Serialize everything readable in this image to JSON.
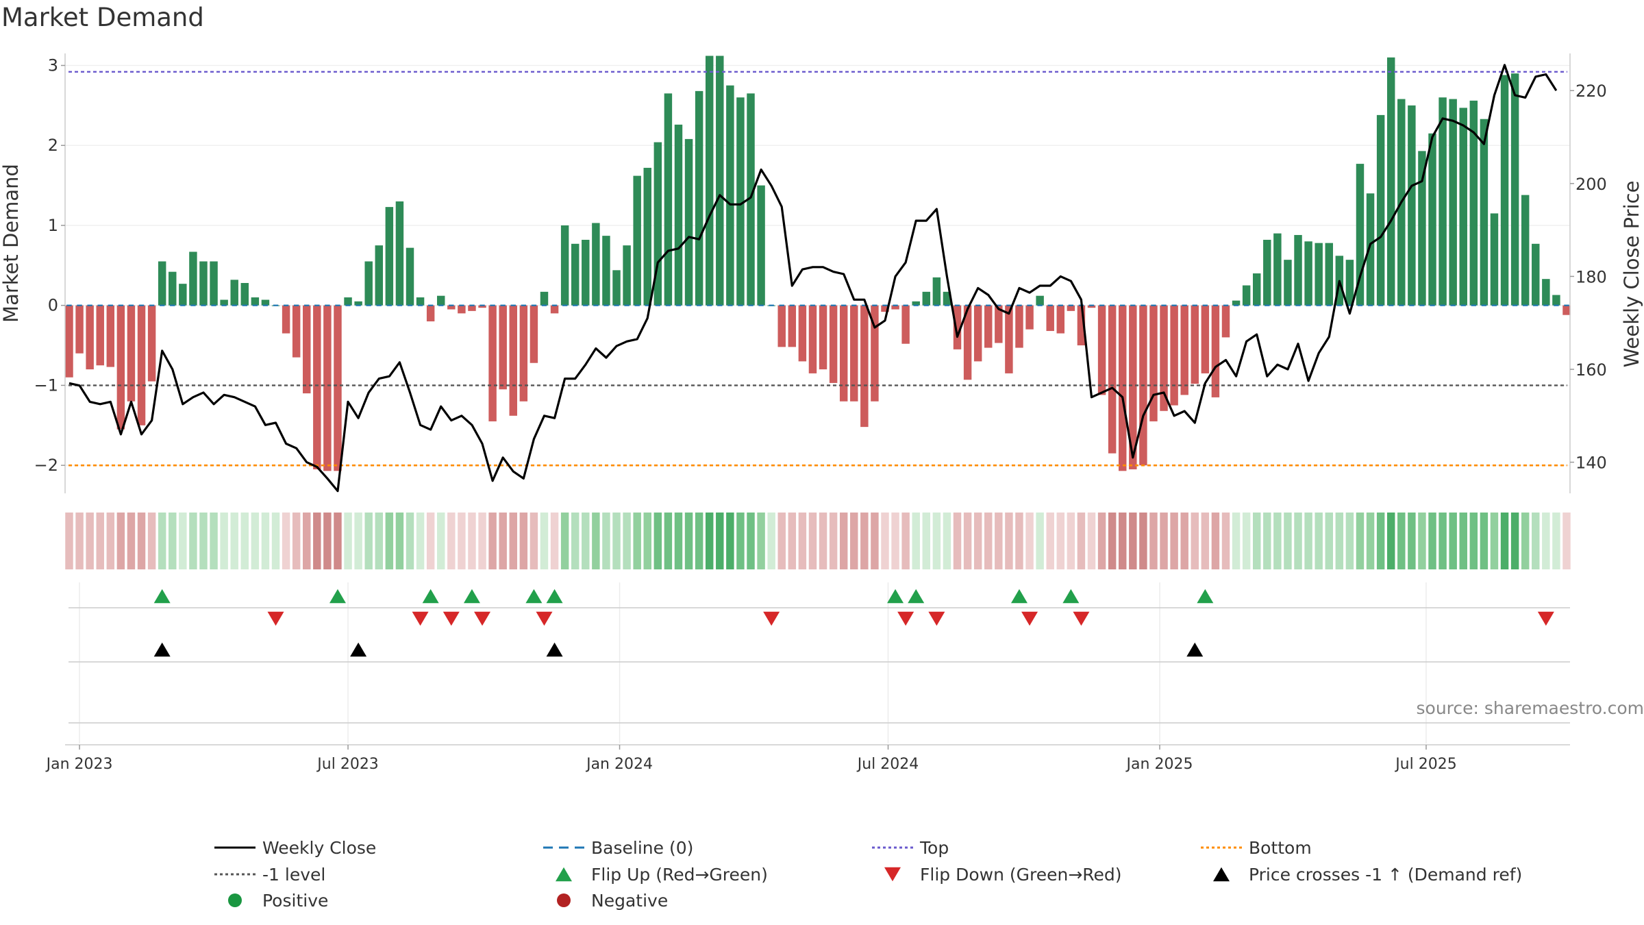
{
  "chart_data": {
    "type": "bar",
    "title": "Market Demand",
    "ylabel": "Market Demand",
    "y2label": "Weekly Close Price",
    "source": "source: sharemaestro.com",
    "ylim": [
      -2.35,
      3.15
    ],
    "y2lim": [
      133.3,
      228
    ],
    "yticks": [
      3,
      2,
      1,
      0,
      -1,
      -2
    ],
    "ytick_labels": [
      "3",
      "2",
      "1",
      "0",
      "−1",
      "−2"
    ],
    "y2ticks": [
      220,
      200,
      180,
      160,
      140
    ],
    "y2tick_labels": [
      "220",
      "200",
      "180",
      "160",
      "140"
    ],
    "reference_levels": {
      "top": 2.92,
      "minus1": -1,
      "bottom": -2
    },
    "x_start": "2022-12-26",
    "x_ticks": [
      {
        "label": "Jan 2023",
        "week": 1
      },
      {
        "label": "Jul 2023",
        "week": 27
      },
      {
        "label": "Jan 2024",
        "week": 53.3
      },
      {
        "label": "Jul 2024",
        "week": 79.3
      },
      {
        "label": "Jan 2025",
        "week": 105.6
      },
      {
        "label": "Jul 2025",
        "week": 131.4
      }
    ],
    "demand": [
      -0.9,
      -0.6,
      -0.8,
      -0.75,
      -0.77,
      -1.55,
      -1.2,
      -1.5,
      -0.95,
      0.55,
      0.42,
      0.27,
      0.67,
      0.55,
      0.55,
      0.07,
      0.32,
      0.28,
      0.1,
      0.07,
      0,
      -0.35,
      -0.65,
      -1.1,
      -2.05,
      -2.07,
      -2.07,
      0.1,
      0.05,
      0.55,
      0.75,
      1.23,
      1.3,
      0.72,
      0.1,
      -0.2,
      0.12,
      -0.05,
      -0.1,
      -0.07,
      -0.03,
      -1.45,
      -1.05,
      -1.38,
      -1.2,
      -0.72,
      0.17,
      -0.1,
      1,
      0.77,
      0.82,
      1.03,
      0.87,
      0.44,
      0.75,
      1.62,
      1.72,
      2.04,
      2.65,
      2.26,
      2.08,
      2.68,
      3.12,
      3.12,
      2.75,
      2.6,
      2.65,
      1.5,
      0,
      -0.52,
      -0.52,
      -0.7,
      -0.85,
      -0.8,
      -0.97,
      -1.2,
      -1.2,
      -1.52,
      -1.2,
      -0.08,
      -0.05,
      -0.48,
      0.05,
      0.17,
      0.35,
      0.17,
      -0.55,
      -0.93,
      -0.7,
      -0.53,
      -0.47,
      -0.85,
      -0.53,
      -0.3,
      0.12,
      -0.32,
      -0.35,
      -0.07,
      -0.5,
      -0.03,
      -1.12,
      -1.85,
      -2.07,
      -2.05,
      -2,
      -1.45,
      -1.32,
      -1.25,
      -1.12,
      -0.98,
      -0.85,
      -1.15,
      -0.4,
      0.06,
      0.25,
      0.4,
      0.82,
      0.9,
      0.57,
      0.88,
      0.8,
      0.78,
      0.78,
      0.62,
      0.57,
      1.77,
      1.4,
      2.38,
      3.1,
      2.58,
      2.5,
      1.93,
      2.15,
      2.6,
      2.58,
      2.47,
      2.56,
      2.33,
      1.15,
      2.88,
      2.9,
      1.38,
      0.77,
      0.33,
      0.13,
      -0.12
    ],
    "weekly_close": [
      157,
      156.5,
      153,
      152.5,
      153,
      146,
      153,
      146,
      149,
      164,
      160,
      152.5,
      154,
      155,
      152.5,
      154.5,
      154,
      153,
      152,
      148,
      148.5,
      144,
      143,
      140,
      139,
      136.5,
      133.8,
      153,
      149.5,
      155,
      158,
      158.5,
      161.5,
      155,
      148,
      147,
      152,
      149,
      150,
      148,
      144,
      136,
      141,
      138,
      136.5,
      145,
      150,
      149.5,
      158,
      158,
      161,
      164.5,
      162.5,
      165,
      166,
      166.5,
      171,
      183,
      185.5,
      186,
      188.5,
      188,
      193,
      197.5,
      195.5,
      195.5,
      197,
      203,
      199.5,
      195,
      178,
      181.5,
      182,
      182,
      181,
      180.5,
      175,
      175,
      169,
      170.5,
      180,
      183,
      192,
      192,
      194.5,
      180,
      167,
      173,
      177.5,
      176,
      173,
      172,
      177.5,
      176.5,
      178,
      178,
      180,
      179,
      175,
      154,
      155,
      156,
      154,
      141,
      150,
      154.5,
      155,
      150,
      151,
      148.5,
      157,
      160.5,
      162,
      158.5,
      166,
      167.5,
      158.5,
      161,
      160,
      165.5,
      157.5,
      163.5,
      167,
      179,
      172,
      180,
      187,
      188.5,
      192,
      196,
      199.5,
      200.5,
      210,
      214,
      213.5,
      212.5,
      211,
      208.5,
      219,
      225.5,
      219,
      218.5,
      223,
      223.5,
      220
    ],
    "top_strip": [
      -0.9,
      -0.6,
      -0.8,
      -0.75,
      -0.77,
      -1.55,
      -1.2,
      -1.5,
      -0.95,
      0.55,
      0.42,
      0.27,
      0.67,
      0.55,
      0.55,
      0.07,
      0.32,
      0.28,
      0.1,
      0.07,
      0,
      -0.35,
      -0.65,
      -1.1,
      -2.05,
      -2.07,
      -2.07,
      0.1,
      0.05,
      0.55,
      0.75,
      1.23,
      1.3,
      0.72,
      0.1,
      -0.2,
      0.12,
      -0.05,
      -0.1,
      -0.07,
      -0.03,
      -1.45,
      -1.05,
      -1.38,
      -1.2,
      -0.72,
      0.17,
      -0.1,
      1,
      0.77,
      0.82,
      1.03,
      0.87,
      0.44,
      0.75,
      1.62,
      1.72,
      2.04,
      2.65,
      2.26,
      2.08,
      2.68,
      3.12,
      3.12,
      2.75,
      2.6,
      2.65,
      1.5,
      0,
      -0.52,
      -0.52,
      -0.7,
      -0.85,
      -0.8,
      -0.97,
      -1.2,
      -1.2,
      -1.52,
      -1.2,
      -0.08,
      -0.05,
      -0.48,
      0.05,
      0.17,
      0.35,
      0.17,
      -0.55,
      -0.93,
      -0.7,
      -0.53,
      -0.47,
      -0.85,
      -0.53,
      -0.3,
      0.12,
      -0.32,
      -0.35,
      -0.07,
      -0.5,
      -0.03,
      -1.12,
      -1.85,
      -2.07,
      -2.05,
      -2,
      -1.45,
      -1.32,
      -1.25,
      -1.12,
      -0.98,
      -0.85,
      -1.15,
      -0.4,
      0.06,
      0.25,
      0.4,
      0.82,
      0.9,
      0.57,
      0.88,
      0.8,
      0.78,
      0.78,
      0.62,
      0.57,
      1.77,
      1.4,
      2.38,
      3.1,
      2.58,
      2.5,
      1.93,
      2.15,
      2.6,
      2.58,
      2.47,
      2.56,
      2.33,
      1.15,
      2.88,
      2.9,
      1.38,
      0.77,
      0.33,
      0.13,
      -0.12
    ],
    "flip_up_weeks": [
      9,
      26,
      35,
      39,
      45,
      47,
      80,
      82,
      92,
      97,
      110
    ],
    "flip_down_weeks": [
      20,
      34,
      37,
      40,
      46,
      68,
      81,
      84,
      93,
      98,
      143
    ],
    "price_cross_weeks": [
      9,
      28,
      47,
      109
    ],
    "colors": {
      "positive": "#2e8b57",
      "negative": "#cd5c5c",
      "close": "#000000",
      "baseline": "#1f77b4",
      "top": "#6a5acd",
      "bottom": "#ff8c00",
      "minus1": "#555555",
      "flip_up": "#22a04b",
      "flip_down": "#d62728",
      "cross": "#000000",
      "pos_legend": "#1a9641",
      "neg_legend": "#b22222"
    },
    "legend": [
      {
        "label": "Weekly Close",
        "kind": "solid-line",
        "color": "#000000"
      },
      {
        "label": "Baseline (0)",
        "kind": "dash-line",
        "color": "#1f77b4"
      },
      {
        "label": "Top",
        "kind": "dot-line",
        "color": "#6a5acd"
      },
      {
        "label": "Bottom",
        "kind": "dot-line",
        "color": "#ff8c00"
      },
      {
        "label": "-1 level",
        "kind": "dot-line",
        "color": "#555555"
      },
      {
        "label": "Flip Up (Red→Green)",
        "kind": "tri-up",
        "color": "#22a04b"
      },
      {
        "label": "Flip Down (Green→Red)",
        "kind": "tri-down",
        "color": "#d62728"
      },
      {
        "label": "Price crosses -1 ↑ (Demand ref)",
        "kind": "tri-up",
        "color": "#000000"
      },
      {
        "label": "Positive",
        "kind": "circle",
        "color": "#1a9641"
      },
      {
        "label": "Negative",
        "kind": "circle",
        "color": "#b22222"
      }
    ]
  }
}
